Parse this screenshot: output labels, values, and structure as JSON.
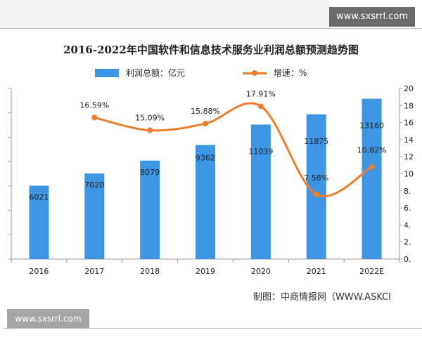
{
  "watermark_top": "www.sxsrrl.com",
  "watermark_bottom": "www.sxsrrl.com",
  "source": "制图：中商情报网（WWW.ASKCI",
  "chart_data": {
    "type": "bar+line",
    "title": "2016-2022年中国软件和信息技术服务业利润总额预测趋势图",
    "categories": [
      "2016",
      "2017",
      "2018",
      "2019",
      "2020",
      "2021",
      "2022E"
    ],
    "series": [
      {
        "name": "利润总额：亿元",
        "type": "bar",
        "axis": "left",
        "values": [
          6021,
          7020,
          8079,
          9362,
          11039,
          11875,
          13160
        ],
        "labels": [
          "6021",
          "7020",
          "8079",
          "9362",
          "11039",
          "11875",
          "13160"
        ],
        "color": "#3d96e4"
      },
      {
        "name": "增速：%",
        "type": "line",
        "axis": "right",
        "values": [
          null,
          16.59,
          15.09,
          15.88,
          17.91,
          7.58,
          10.82
        ],
        "labels": [
          "",
          "16.59%",
          "15.09%",
          "15.88%",
          "17.91%",
          "7.58%",
          "10.82%"
        ],
        "color": "#f07d2b"
      }
    ],
    "left_ylim": [
      0,
      14000
    ],
    "right_ylim": [
      0,
      20
    ],
    "right_ticks": [
      "0.",
      "2.",
      "4.",
      "6.",
      "8.",
      "10",
      "12",
      "14",
      "16",
      "18",
      "20"
    ],
    "legend": "top",
    "grid": false
  }
}
